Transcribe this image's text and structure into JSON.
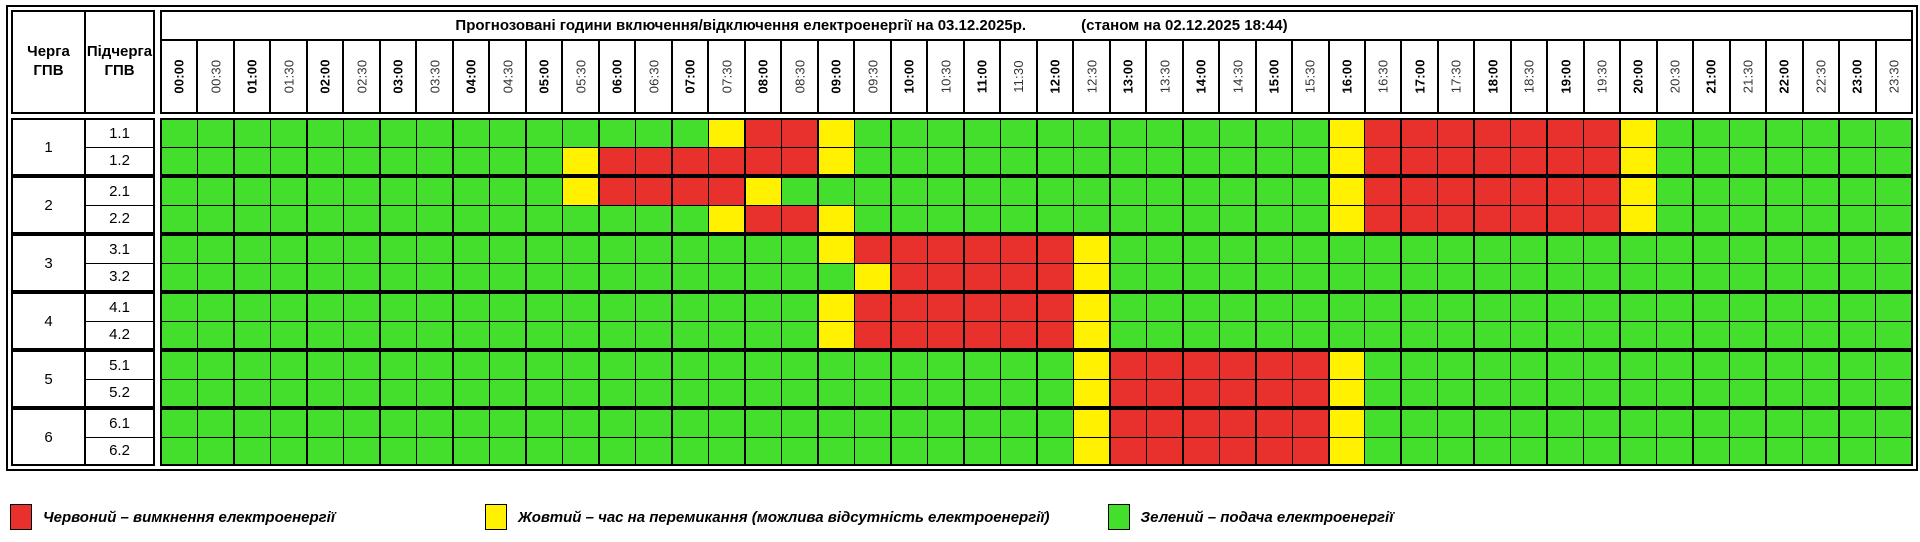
{
  "header": {
    "queue_label": "Черга\nГПВ",
    "subqueue_label": "Підчерга\nГПВ",
    "title": "Прогнозовані години включення/відключення електроенергії на 03.12.2025р.",
    "timestamp": "(станом на 02.12.2025 18:44)"
  },
  "chart_data": {
    "type": "heatmap",
    "title": "Прогнозовані години включення/відключення електроенергії на 03.12.2025р.",
    "subtitle": "(станом на 02.12.2025 18:44)",
    "x": [
      "00:00",
      "00:30",
      "01:00",
      "01:30",
      "02:00",
      "02:30",
      "03:00",
      "03:30",
      "04:00",
      "04:30",
      "05:00",
      "05:30",
      "06:00",
      "06:30",
      "07:00",
      "07:30",
      "08:00",
      "08:30",
      "09:00",
      "09:30",
      "10:00",
      "10:30",
      "11:00",
      "11:30",
      "12:00",
      "12:30",
      "13:00",
      "13:30",
      "14:00",
      "14:30",
      "15:00",
      "15:30",
      "16:00",
      "16:30",
      "17:00",
      "17:30",
      "18:00",
      "18:30",
      "19:00",
      "19:30",
      "20:00",
      "20:30",
      "21:00",
      "21:30",
      "22:00",
      "22:30",
      "23:00",
      "23:30"
    ],
    "state_codes": {
      "G": "подача електроенергії",
      "Y": "час на перемикання",
      "R": "вимкнення електроенергії"
    },
    "colors": {
      "G": "#44DF2C",
      "Y": "#FFF100",
      "R": "#E8312D"
    },
    "rows": [
      {
        "queue": "1",
        "subqueue": "1.1",
        "states": "GGGGGGGGGGGGGGGYRRYGGGGGGGGGGGGGYRRRRRRRYGGGGGGG"
      },
      {
        "queue": "1",
        "subqueue": "1.2",
        "states": "GGGGGGGGGGGYRRRRRRYGGGGGGGGGGGGGYRRRRRRRYGGGGGGG"
      },
      {
        "queue": "2",
        "subqueue": "2.1",
        "states": "GGGGGGGGGGGYRRRRYGGGGGGGGGGGGGGGYRRRRRRRYGGGGGGG"
      },
      {
        "queue": "2",
        "subqueue": "2.2",
        "states": "GGGGGGGGGGGGGGGYRRYGGGGGGGGGGGGGYRRRRRRRYGGGGGGG"
      },
      {
        "queue": "3",
        "subqueue": "3.1",
        "states": "GGGGGGGGGGGGGGGGGGYRRRRRRYGGGGGGGGGGGGGGGGGGGGGG"
      },
      {
        "queue": "3",
        "subqueue": "3.2",
        "states": "GGGGGGGGGGGGGGGGGGGYRRRRRYGGGGGGGGGGGGGGGGGGGGGG"
      },
      {
        "queue": "4",
        "subqueue": "4.1",
        "states": "GGGGGGGGGGGGGGGGGGYRRRRRRYGGGGGGGGGGGGGGGGGGGGGG"
      },
      {
        "queue": "4",
        "subqueue": "4.2",
        "states": "GGGGGGGGGGGGGGGGGGYRRRRRRYGGGGGGGGGGGGGGGGGGGGGG"
      },
      {
        "queue": "5",
        "subqueue": "5.1",
        "states": "GGGGGGGGGGGGGGGGGGGGGGGGGYRRRRRRYGGGGGGGGGGGGGGG"
      },
      {
        "queue": "5",
        "subqueue": "5.2",
        "states": "GGGGGGGGGGGGGGGGGGGGGGGGGYRRRRRRYGGGGGGGGGGGGGGG"
      },
      {
        "queue": "6",
        "subqueue": "6.1",
        "states": "GGGGGGGGGGGGGGGGGGGGGGGGGYRRRRRRYGGGGGGGGGGGGGGG"
      },
      {
        "queue": "6",
        "subqueue": "6.2",
        "states": "GGGGGGGGGGGGGGGGGGGGGGGGGYRRRRRRYGGGGGGGGGGGGGGG"
      }
    ]
  },
  "legend": {
    "items": [
      {
        "key": "R",
        "color": "#E8312D",
        "label": "Червоний – вимкнення електроенергії"
      },
      {
        "key": "Y",
        "color": "#FFF100",
        "label": "Жовтий – час на перемикання (можлива відсутність електроенергії)"
      },
      {
        "key": "G",
        "color": "#44DF2C",
        "label": "Зелений – подача електроенергії"
      }
    ]
  }
}
